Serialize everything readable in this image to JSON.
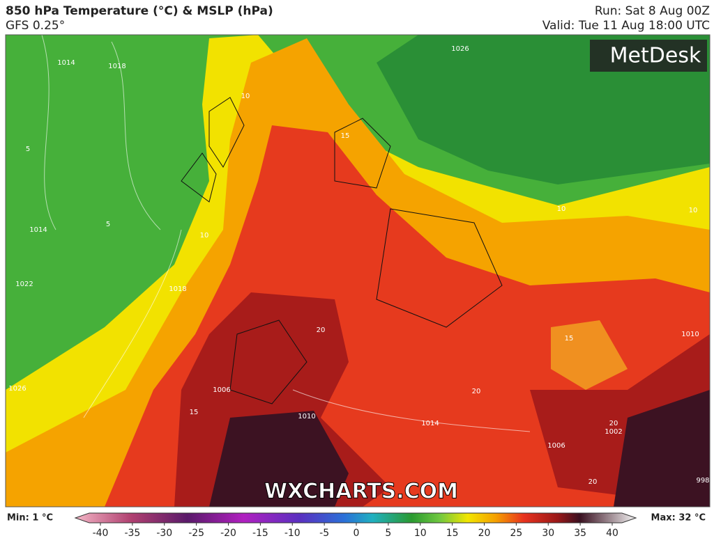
{
  "header": {
    "title": "850 hPa Temperature (°C) & MSLP (hPa)",
    "model": "GFS 0.25°",
    "run": "Run: Sat 8 Aug 00Z",
    "valid": "Valid: Tue 11 Aug 18:00 UTC"
  },
  "map": {
    "logo": "MetDesk",
    "watermark": "WXCHARTS.COM",
    "contour_labels": [
      "1014",
      "1018",
      "1014",
      "1022",
      "1026",
      "1018",
      "1006",
      "1010",
      "1014",
      "1006",
      "1002",
      "998",
      "1010",
      "1026",
      "10",
      "15",
      "10",
      "10",
      "10",
      "5",
      "5",
      "15",
      "20",
      "20",
      "20",
      "15",
      "20"
    ]
  },
  "legend": {
    "min": "Min: 1 °C",
    "max": "Max: 32 °C",
    "ticks": [
      -40,
      -35,
      -30,
      -25,
      -20,
      -15,
      -10,
      -5,
      0,
      5,
      10,
      15,
      20,
      25,
      30,
      35,
      40
    ]
  }
}
